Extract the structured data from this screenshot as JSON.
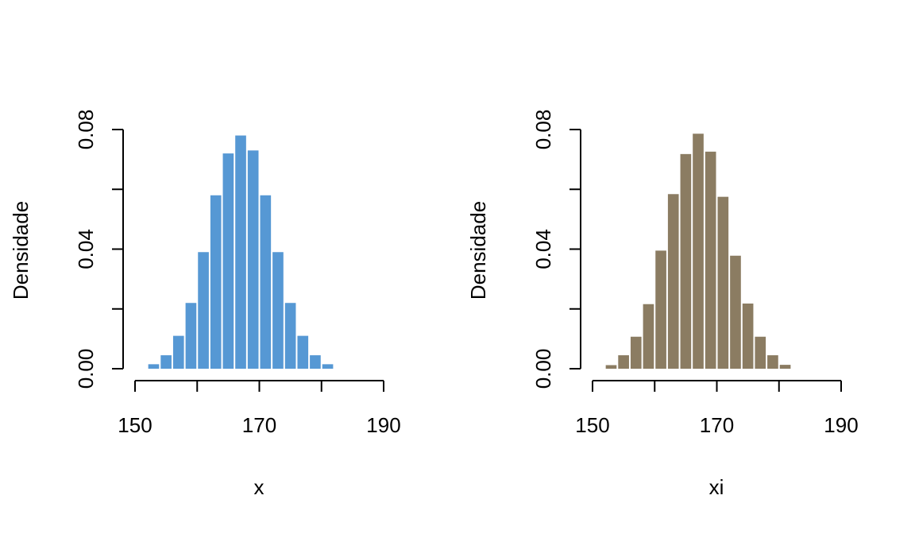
{
  "chart_data": [
    {
      "type": "bar",
      "title": "",
      "xlabel": "x",
      "ylabel": "Densidade",
      "color": "#5698d4",
      "xlim": [
        150,
        190
      ],
      "ylim": [
        0,
        0.08
      ],
      "x_ticks": [
        "150",
        "170",
        "190"
      ],
      "y_ticks": [
        "0.00",
        "0.04",
        "0.08"
      ],
      "bin_width": 2,
      "bin_start": 152,
      "values": [
        0.0015,
        0.0045,
        0.011,
        0.022,
        0.039,
        0.058,
        0.072,
        0.078,
        0.073,
        0.058,
        0.039,
        0.022,
        0.011,
        0.0045,
        0.0015
      ]
    },
    {
      "type": "bar",
      "title": "",
      "xlabel": "xi",
      "ylabel": "Densidade",
      "color": "#8b7c62",
      "xlim": [
        150,
        190
      ],
      "ylim": [
        0,
        0.08
      ],
      "x_ticks": [
        "150",
        "170",
        "190"
      ],
      "y_ticks": [
        "0.00",
        "0.04",
        "0.08"
      ],
      "bin_width": 2,
      "bin_start": 152,
      "values": [
        0.0012,
        0.0045,
        0.0107,
        0.0216,
        0.0395,
        0.0584,
        0.0718,
        0.0786,
        0.0726,
        0.0575,
        0.0378,
        0.0218,
        0.0107,
        0.0045,
        0.0013
      ]
    }
  ]
}
